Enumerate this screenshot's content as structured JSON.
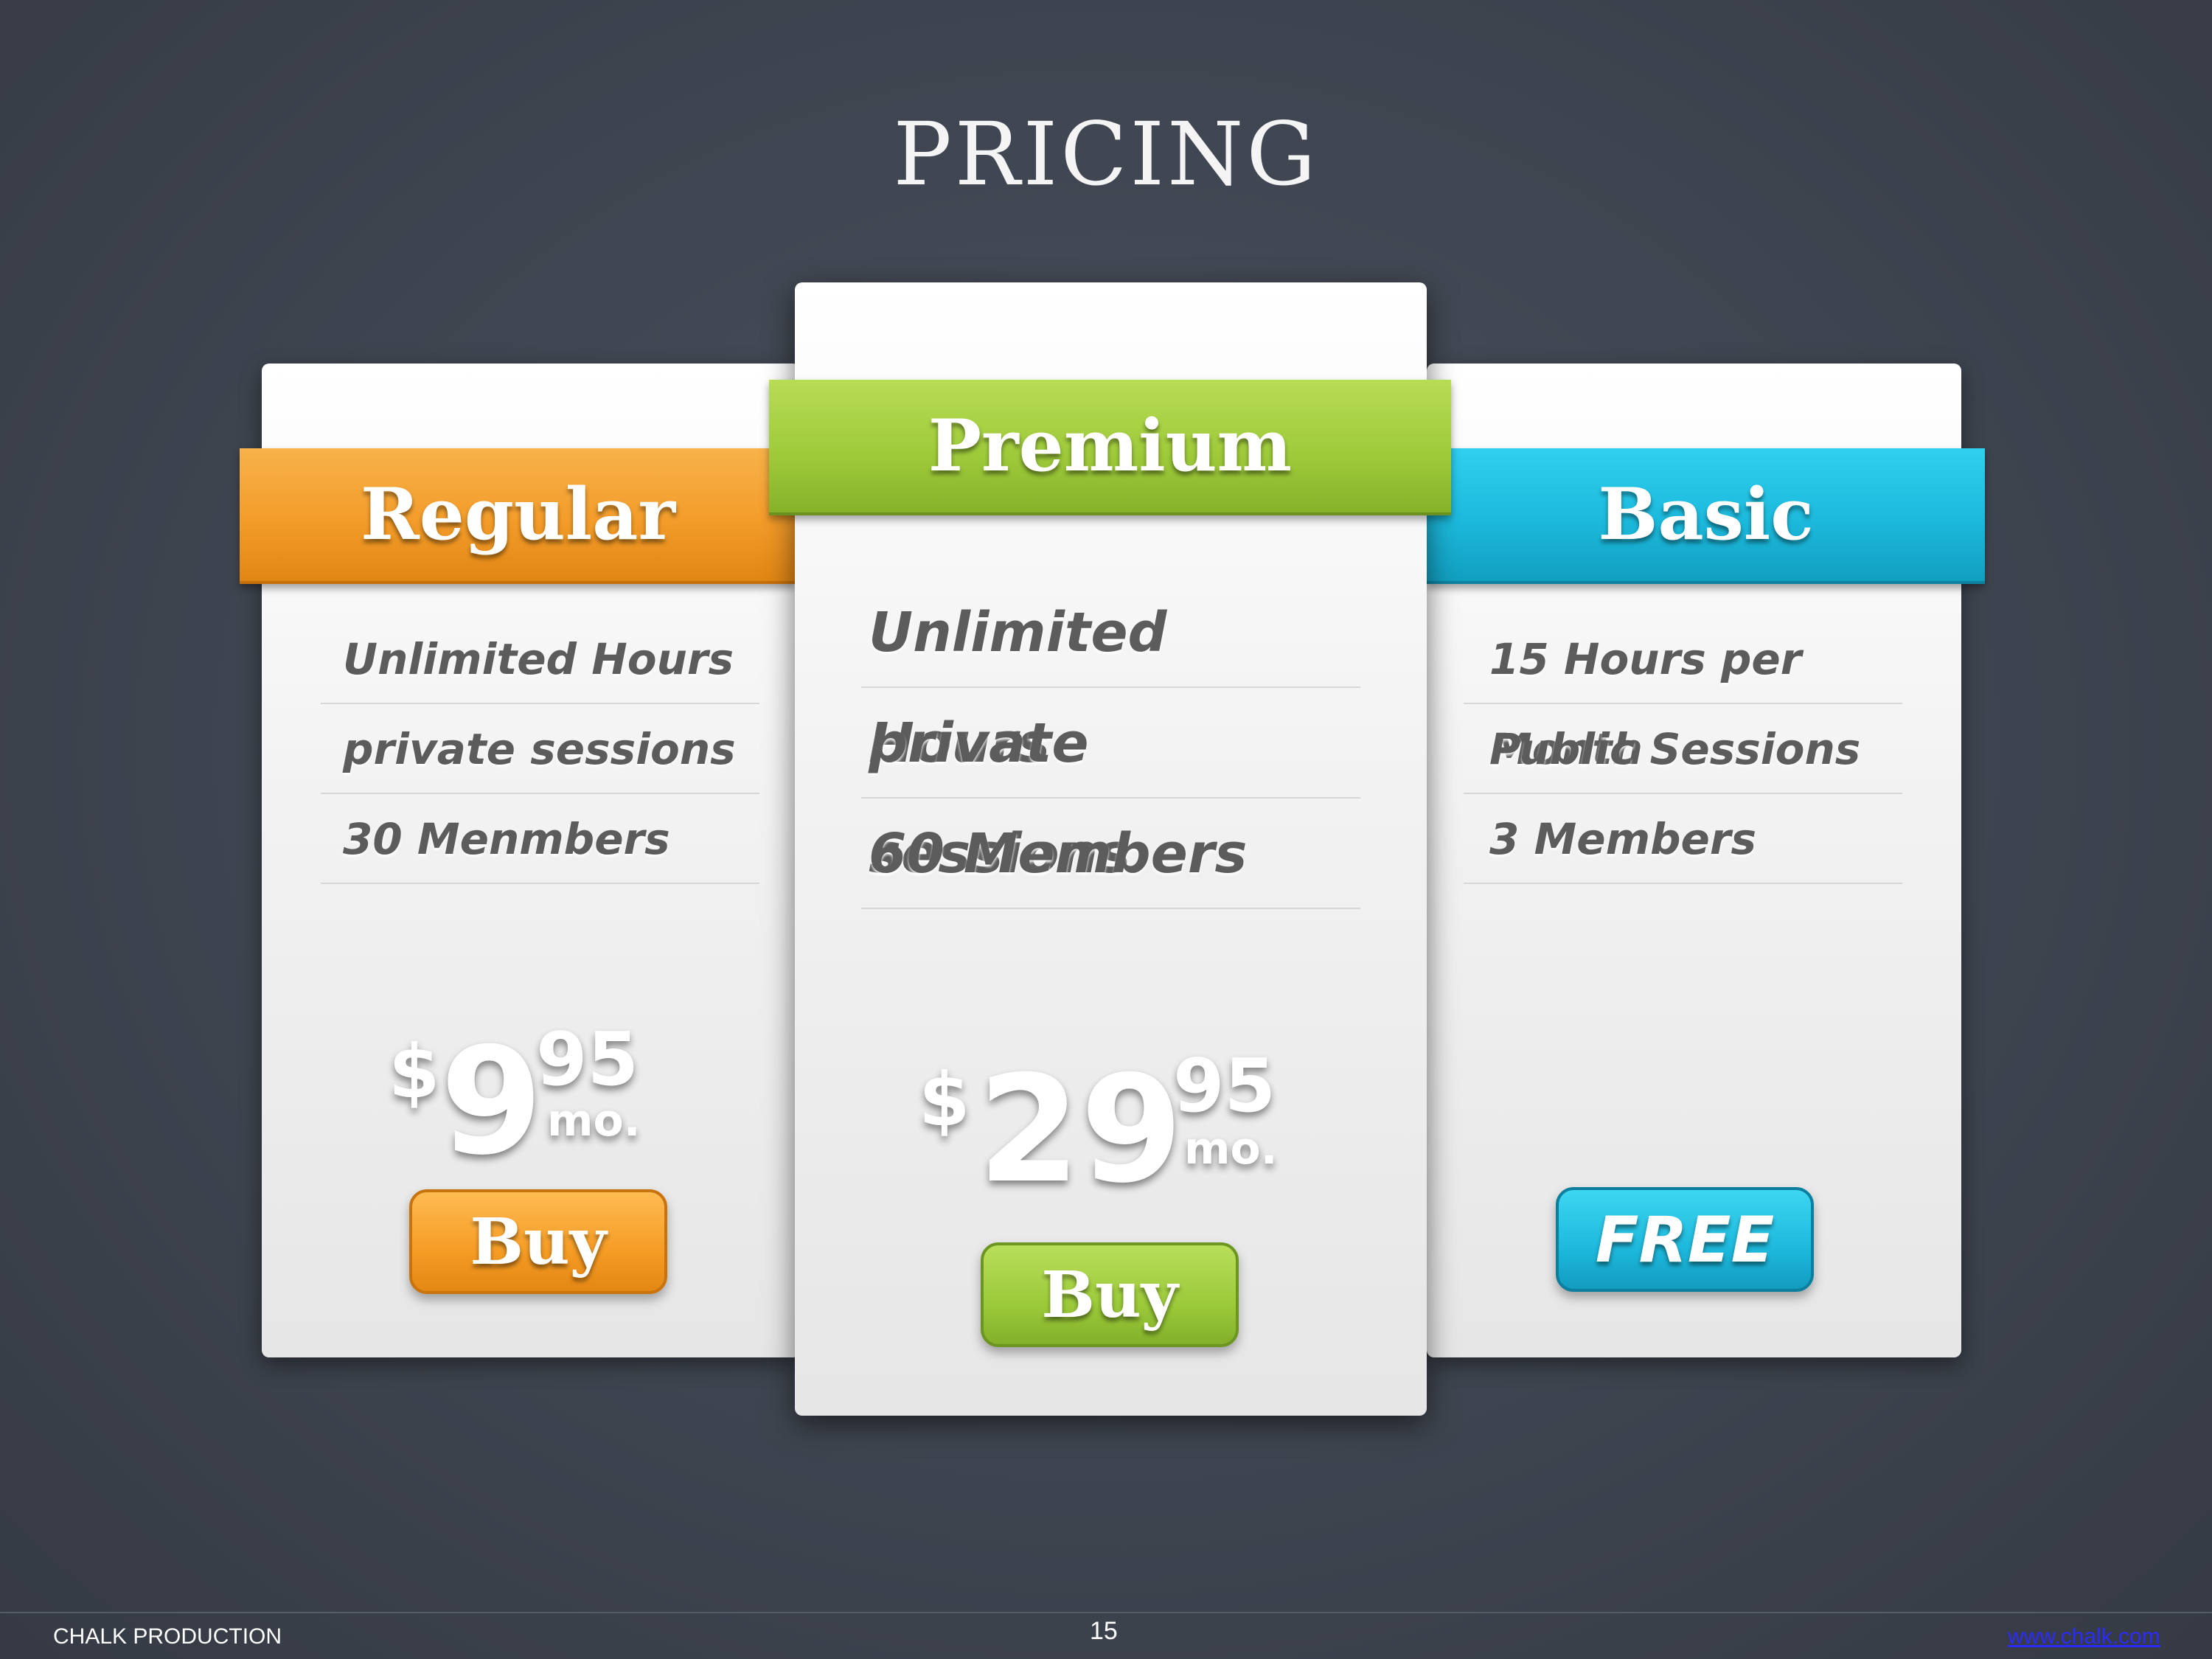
{
  "title": "PRICING",
  "plans": {
    "regular": {
      "name": "Regular",
      "features": [
        "Unlimited Hours",
        "private sessions",
        "30 Menmbers"
      ],
      "price": {
        "currency": "$",
        "whole": "9",
        "cents": "95",
        "period": "mo."
      },
      "button": "Buy",
      "color": "#f39c2a"
    },
    "premium": {
      "name": "Premium",
      "features": [
        "Unlimited Hours",
        "private sessions",
        "60 Members"
      ],
      "price": {
        "currency": "$",
        "whole": "29",
        "cents": "95",
        "period": "mo."
      },
      "button": "Buy",
      "color": "#9fcb3b"
    },
    "basic": {
      "name": "Basic",
      "features": [
        "15 Hours per Month",
        "Public  Sessions",
        "3 Members"
      ],
      "button": "FREE",
      "color": "#1cb9dc"
    }
  },
  "footer": {
    "left": "CHALK PRODUCTION",
    "page": "15",
    "link": "www.chalk.com"
  }
}
